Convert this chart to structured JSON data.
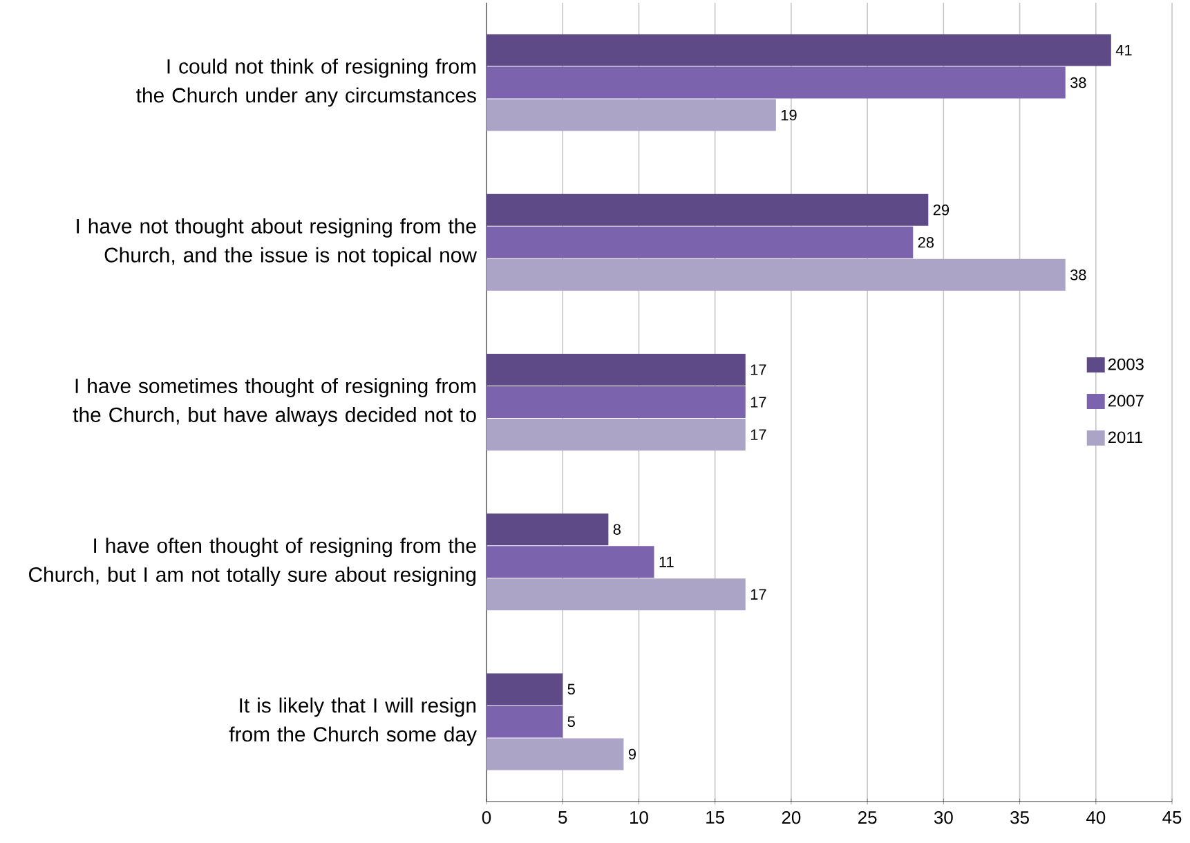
{
  "chart_data": {
    "type": "bar",
    "orientation": "horizontal",
    "categories": [
      "I could not think of resigning from the Church under any circumstances",
      "I have not thought about resigning from the Church, and the issue is not topical now",
      "I have sometimes thought of resigning from the Church, but have always decided not to",
      "I have often thought of resigning from the Church, but I am not totally sure about resigning",
      "It is likely that I will resign from the Church some day"
    ],
    "series": [
      {
        "name": "2003",
        "color": "#5e4a87",
        "values": [
          41,
          29,
          17,
          8,
          5
        ]
      },
      {
        "name": "2007",
        "color": "#7b63ae",
        "values": [
          38,
          28,
          17,
          11,
          5
        ]
      },
      {
        "name": "2011",
        "color": "#aba4c7",
        "values": [
          19,
          38,
          17,
          17,
          9
        ]
      }
    ],
    "xlim": [
      0,
      45
    ],
    "xticks": [
      0,
      5,
      10,
      15,
      20,
      25,
      30,
      35,
      40,
      45
    ],
    "grid": "x",
    "legend": "right",
    "data_labels": true
  }
}
